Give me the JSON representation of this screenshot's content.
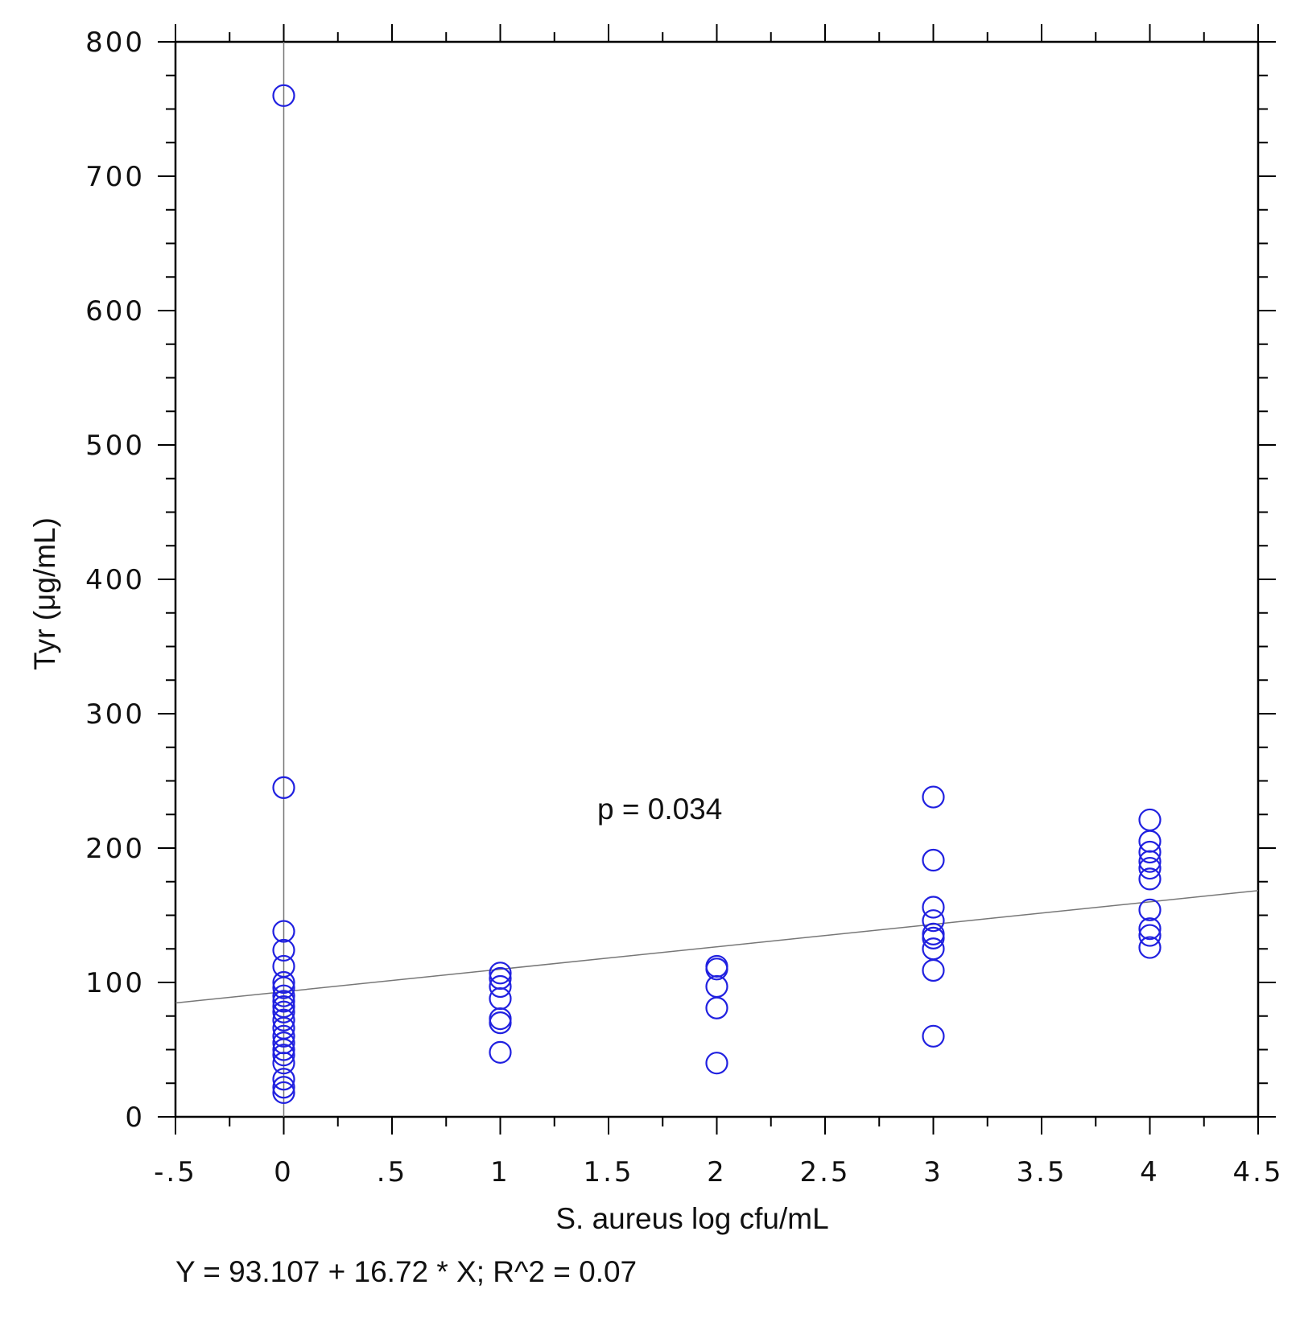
{
  "chart_data": {
    "type": "scatter",
    "xlabel": "S. aureus log cfu/mL",
    "ylabel": "Tyr (μg/mL)",
    "xlim": [
      -0.5,
      4.5
    ],
    "ylim": [
      0,
      800
    ],
    "x_ticks": [
      -0.5,
      0,
      0.5,
      1,
      1.5,
      2,
      2.5,
      3,
      3.5,
      4,
      4.5
    ],
    "x_tick_labels": [
      "-.5",
      "0",
      ".5",
      "1",
      "1.5",
      "2",
      "2.5",
      "3",
      "3.5",
      "4",
      "4.5"
    ],
    "y_ticks": [
      0,
      100,
      200,
      300,
      400,
      500,
      600,
      700,
      800
    ],
    "y_tick_labels": [
      "0",
      "100",
      "200",
      "300",
      "400",
      "500",
      "600",
      "700",
      "800"
    ],
    "grid": false,
    "reference_line_x": 0,
    "regression": {
      "intercept": 93.107,
      "slope": 16.72,
      "equation_label": "Y = 93.107 + 16.72 * X; R^2 = 0.07"
    },
    "annotation": "p = 0.034",
    "marker_color": "#2020e0",
    "series": [
      {
        "points": [
          [
            0,
            760
          ],
          [
            0,
            245
          ],
          [
            0,
            138
          ],
          [
            0,
            124
          ],
          [
            0,
            112
          ],
          [
            0,
            100
          ],
          [
            0,
            96
          ],
          [
            0,
            90
          ],
          [
            0,
            86
          ],
          [
            0,
            82
          ],
          [
            0,
            78
          ],
          [
            0,
            72
          ],
          [
            0,
            66
          ],
          [
            0,
            60
          ],
          [
            0,
            55
          ],
          [
            0,
            50
          ],
          [
            0,
            46
          ],
          [
            0,
            40
          ],
          [
            0,
            28
          ],
          [
            0,
            22
          ],
          [
            0,
            18
          ],
          [
            1,
            107
          ],
          [
            1,
            103
          ],
          [
            1,
            97
          ],
          [
            1,
            88
          ],
          [
            1,
            73
          ],
          [
            1,
            70
          ],
          [
            1,
            48
          ],
          [
            2,
            112
          ],
          [
            2,
            110
          ],
          [
            2,
            97
          ],
          [
            2,
            81
          ],
          [
            2,
            40
          ],
          [
            3,
            238
          ],
          [
            3,
            191
          ],
          [
            3,
            156
          ],
          [
            3,
            146
          ],
          [
            3,
            136
          ],
          [
            3,
            133
          ],
          [
            3,
            125
          ],
          [
            3,
            109
          ],
          [
            3,
            60
          ],
          [
            4,
            221
          ],
          [
            4,
            205
          ],
          [
            4,
            197
          ],
          [
            4,
            190
          ],
          [
            4,
            185
          ],
          [
            4,
            177
          ],
          [
            4,
            154
          ],
          [
            4,
            140
          ],
          [
            4,
            135
          ],
          [
            4,
            126
          ]
        ]
      }
    ]
  }
}
